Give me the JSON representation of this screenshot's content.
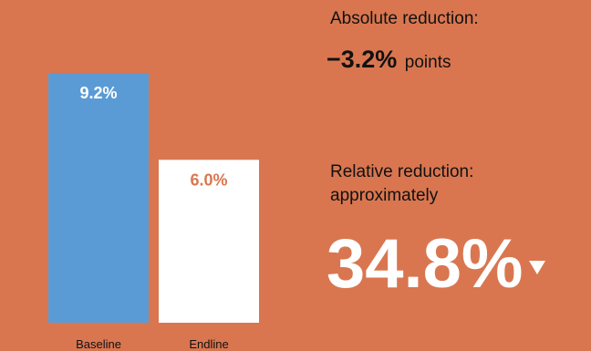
{
  "chart_data": {
    "type": "bar",
    "categories": [
      "Baseline",
      "Endline"
    ],
    "values": [
      9.2,
      6.0
    ],
    "data_labels": [
      "9.2%",
      "6.0%"
    ],
    "ylim": [
      0,
      9.2
    ],
    "bar_colors": [
      "#5B9BD5",
      "#FFFFFF"
    ],
    "label_colors": [
      "#FFFFFF",
      "#D97650"
    ],
    "grid": false,
    "legend": "none"
  },
  "summary": {
    "absolute_title": "Absolute reduction:",
    "absolute_value": "−3.2%",
    "absolute_unit": "points",
    "relative_title": "Relative reduction: approximately",
    "relative_value": "34.8%",
    "relative_icon": "down-triangle-icon"
  },
  "colors": {
    "background": "#D97650",
    "text_dark": "#111111",
    "text_light": "#FFFFFF"
  }
}
